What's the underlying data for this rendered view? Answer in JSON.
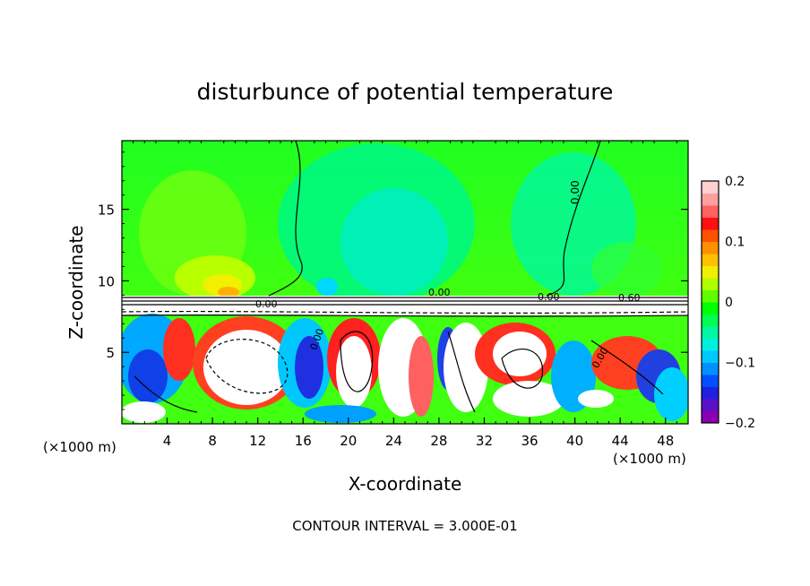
{
  "chart_data": {
    "type": "heatmap",
    "title": "disturbunce of potential temperature",
    "xlabel": "X-coordinate",
    "ylabel": "Z-coordinate",
    "x_unit_label": "(×1000 m)",
    "x_unit_label_2": "(×1000 m)",
    "footer": "CONTOUR INTERVAL = 3.000E-01",
    "xlim": [
      0,
      50
    ],
    "ylim": [
      0,
      19.8
    ],
    "x_ticks": [
      4,
      8,
      12,
      16,
      20,
      24,
      28,
      32,
      36,
      40,
      44,
      48
    ],
    "y_ticks": [
      5,
      10,
      15
    ],
    "colorbar": {
      "range": [
        -0.2,
        0.2
      ],
      "tick_values": [
        0.2,
        0.1,
        0,
        -0.1,
        -0.2
      ],
      "tick_labels": [
        "0.2",
        "0.1",
        "0",
        "−0.1",
        "−0.2"
      ],
      "colors": [
        "#8a00b0",
        "#5a10c8",
        "#2020e0",
        "#0050ff",
        "#0090ff",
        "#00c8ff",
        "#00f0e0",
        "#00f8a0",
        "#00ff50",
        "#00ff00",
        "#60ff00",
        "#b0ff00",
        "#f0f000",
        "#ffc000",
        "#ff9000",
        "#ff5000",
        "#ff1010",
        "#ff6060",
        "#ffa0a0",
        "#ffd0d0"
      ]
    },
    "contour_labels": [
      "0.00",
      "0.00",
      "0.00",
      "0.00",
      "0.00",
      "0.00",
      "0.60"
    ],
    "contour_interval": 0.3,
    "grid": false
  }
}
